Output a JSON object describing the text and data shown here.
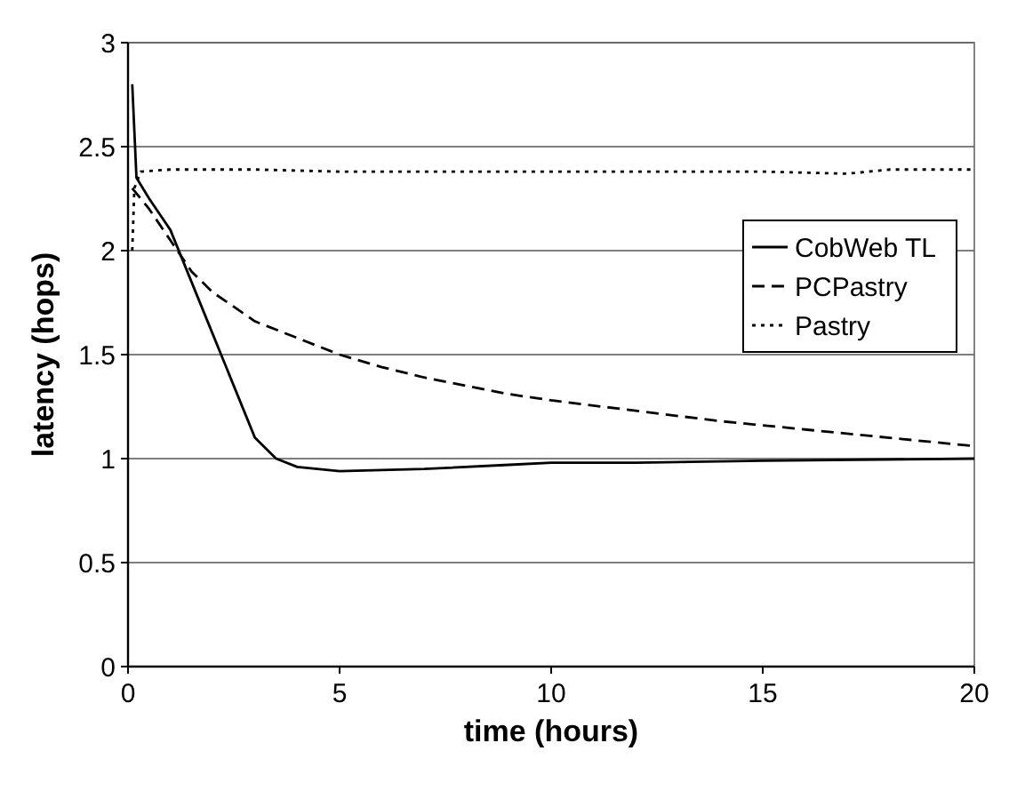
{
  "chart_data": {
    "type": "line",
    "xlabel": "time (hours)",
    "ylabel": "latency (hops)",
    "xlim": [
      0,
      20
    ],
    "xticks": [
      0,
      5,
      10,
      15,
      20
    ],
    "ylim": [
      0,
      3
    ],
    "yticks": [
      0,
      0.5,
      1,
      1.5,
      2,
      2.5,
      3
    ],
    "grid": "y",
    "legend": "top right",
    "series": [
      {
        "name": "CobWeb TL",
        "color": "#000000",
        "line_style": "solid",
        "x": [
          0.1,
          0.2,
          0.5,
          1,
          1.5,
          2,
          2.5,
          3,
          3.5,
          4,
          5,
          7,
          9,
          10,
          12,
          15,
          20
        ],
        "values": [
          2.8,
          2.35,
          2.25,
          2.1,
          1.85,
          1.6,
          1.35,
          1.1,
          1.0,
          0.96,
          0.94,
          0.95,
          0.97,
          0.98,
          0.98,
          0.99,
          1.0
        ]
      },
      {
        "name": "PCPastry",
        "color": "#000000",
        "line_style": "dashed",
        "x": [
          0.1,
          0.5,
          1,
          1.5,
          2,
          3,
          4,
          5,
          6,
          7,
          8,
          9,
          10,
          12,
          14,
          16,
          18,
          20
        ],
        "values": [
          2.3,
          2.2,
          2.05,
          1.9,
          1.8,
          1.66,
          1.58,
          1.5,
          1.44,
          1.39,
          1.35,
          1.31,
          1.28,
          1.23,
          1.18,
          1.14,
          1.1,
          1.06
        ]
      },
      {
        "name": "Pastry",
        "color": "#000000",
        "line_style": "dotted",
        "x": [
          0.1,
          0.15,
          0.3,
          1,
          3,
          5,
          8,
          10,
          13,
          15,
          17,
          18,
          20
        ],
        "values": [
          2.0,
          2.3,
          2.38,
          2.39,
          2.39,
          2.38,
          2.38,
          2.38,
          2.38,
          2.38,
          2.37,
          2.39,
          2.39
        ]
      }
    ]
  }
}
